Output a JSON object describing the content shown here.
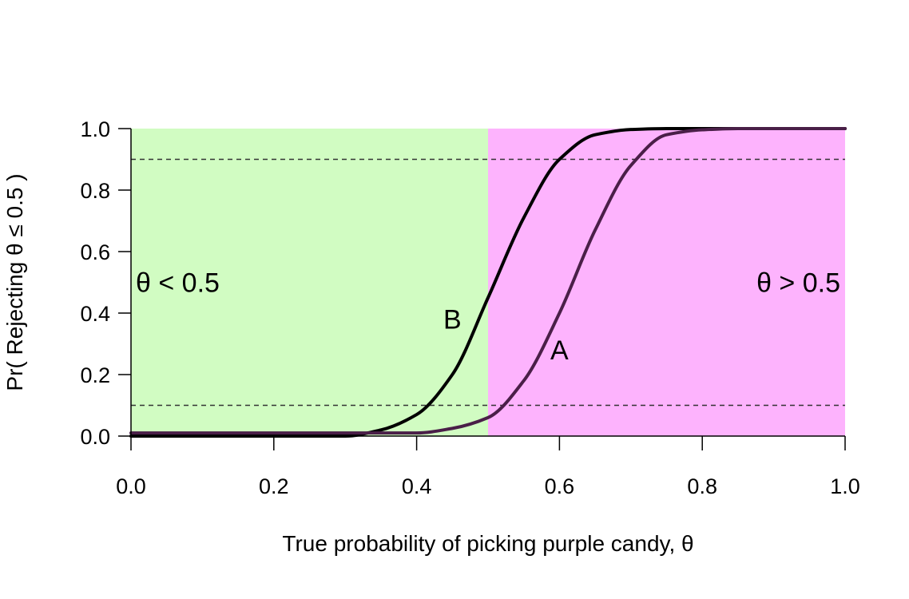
{
  "chart_data": {
    "type": "line",
    "xlabel": "True probability of picking purple candy, θ",
    "ylabel": "Pr( Rejecting θ ≤ 0.5 )",
    "xlim": [
      0,
      1
    ],
    "ylim": [
      0,
      1
    ],
    "xticks": [
      "0.0",
      "0.2",
      "0.4",
      "0.6",
      "0.8",
      "1.0"
    ],
    "yticks": [
      "0.0",
      "0.2",
      "0.4",
      "0.6",
      "0.8",
      "1.0"
    ],
    "grid": false,
    "regions": [
      {
        "label": "θ < 0.5",
        "from": 0.0,
        "to": 0.5,
        "color": "#d1fcc2"
      },
      {
        "label": "θ > 0.5",
        "from": 0.5,
        "to": 1.0,
        "color": "#fdb3fd"
      }
    ],
    "reference_lines": [
      {
        "y": 0.1,
        "style": "dashed"
      },
      {
        "y": 0.9,
        "style": "dashed"
      }
    ],
    "series": [
      {
        "name": "B",
        "color": "#000000",
        "x": [
          0.3,
          0.35,
          0.4,
          0.45,
          0.5,
          0.55,
          0.6,
          0.65,
          0.7,
          0.75,
          0.8
        ],
        "y": [
          0.0,
          0.02,
          0.07,
          0.2,
          0.45,
          0.71,
          0.9,
          0.98,
          0.997,
          1.0,
          1.0
        ]
      },
      {
        "name": "A",
        "color": "#4a1f48",
        "x": [
          0.4,
          0.45,
          0.5,
          0.55,
          0.6,
          0.65,
          0.7,
          0.75,
          0.8,
          0.85
        ],
        "y": [
          0.01,
          0.025,
          0.06,
          0.18,
          0.4,
          0.67,
          0.88,
          0.98,
          0.996,
          1.0
        ]
      }
    ]
  }
}
